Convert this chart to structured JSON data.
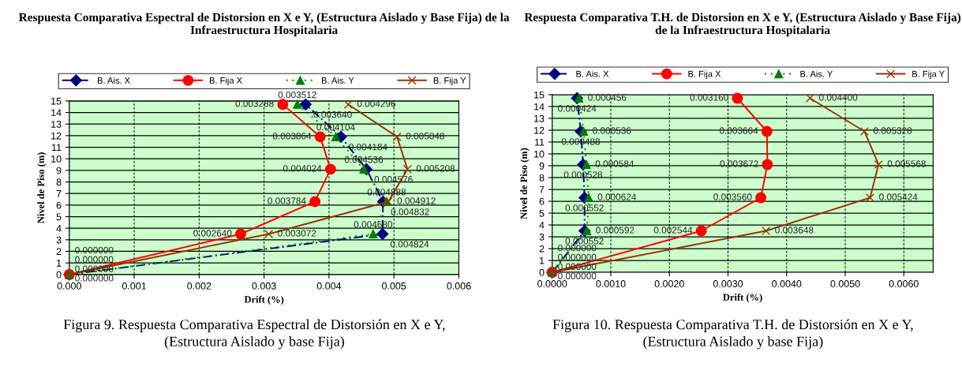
{
  "chart_data": [
    {
      "type": "line",
      "orientation": "horizontal",
      "title": "Respuesta Comparativa Espectral de Distorsion en X e Y, (Estructura Aislado y Base Fija) de la Infraestructura Hospitalaria",
      "xlabel": "Drift (%)",
      "ylabel": "Nivel de Piso (m)",
      "annotations": [
        "Figura 9. Respuesta Comparativa Espectral de Distorsión en X e Y,\n(Estructura Aislado y base Fija)"
      ],
      "series": [
        {
          "name": "B. Ais. X",
          "color": "#000080",
          "marker": "diamond",
          "line_style": "dashed",
          "x": [
            0,
            3.5,
            6.3,
            9.1,
            11.9,
            14.7
          ],
          "values": [
            0.0,
            0.004824,
            0.004832,
            0.004576,
            0.004184,
            0.00364
          ],
          "value_labels": [
            "0.000000",
            "0.004824",
            "0.004832",
            "0.004576",
            "0.004184",
            "0.003640"
          ]
        },
        {
          "name": "B. Fija X",
          "color": "#ff0000",
          "marker": "circle",
          "line_style": "solid",
          "x": [
            0,
            3.5,
            6.3,
            9.1,
            11.9,
            14.7
          ],
          "values": [
            0.0,
            0.00264,
            0.003784,
            0.004024,
            0.003864,
            0.003288
          ],
          "value_labels": [
            "0.000000",
            "0.002640",
            "0.003784",
            "0.004024",
            "0.003864",
            "0.003288"
          ]
        },
        {
          "name": "B. Ais. Y",
          "color": "#008000",
          "marker": "triangle",
          "line_style": "dotted",
          "x": [
            0,
            3.5,
            6.3,
            9.1,
            11.9,
            14.7
          ],
          "values": [
            0.0,
            0.00468,
            0.004888,
            0.004536,
            0.004104,
            0.003512
          ],
          "value_labels": [
            "0.000000",
            "0.004680",
            "0.004888",
            "0.004536",
            "0.004104",
            "0.003512"
          ]
        },
        {
          "name": "B. Fija Y",
          "color": "#993300",
          "marker": "cross",
          "line_style": "solid",
          "x": [
            0,
            3.5,
            6.3,
            9.1,
            11.9,
            14.7
          ],
          "values": [
            0.0,
            0.003072,
            0.004912,
            0.005208,
            0.005048,
            0.004296
          ],
          "value_labels": [
            "0.000000",
            "0.003072",
            "0.004912",
            "0.005208",
            "0.005048",
            "0.004296"
          ]
        }
      ],
      "xlim": [
        0,
        0.006
      ],
      "xticks": [
        {
          "value": 0,
          "label": "0.000"
        },
        0.001,
        0.002,
        0.003,
        0.004,
        0.005,
        0.006
      ],
      "ylim": [
        0,
        15
      ],
      "yticks": [
        0,
        1,
        2,
        3,
        4,
        5,
        6,
        7,
        8,
        9,
        10,
        11,
        12,
        13,
        14,
        15
      ],
      "grid": true,
      "legend": "top"
    },
    {
      "type": "line",
      "orientation": "horizontal",
      "title": "Respuesta Comparativa T.H. de Distorsion en X e Y, (Estructura Aislado y Base Fija) de la Infraestructura Hospitalaria",
      "xlabel": "Drift (%)",
      "ylabel": "Nivel de Piso (m)",
      "annotations": [
        "Figura 10. Respuesta Comparativa T.H. de Distorsión en X e Y,\n(Estructura Aislado y base Fija)"
      ],
      "series": [
        {
          "name": "B. Ais. X",
          "color": "#000080",
          "marker": "diamond",
          "line_style": "dashed",
          "x": [
            0,
            3.5,
            6.3,
            9.1,
            11.9,
            14.7
          ],
          "values": [
            0.0,
            0.000552,
            0.000552,
            0.000528,
            0.000488,
            0.000424
          ],
          "value_labels": [
            "0.000000",
            "0.000552",
            "0.000552",
            "0.000528",
            "0.000488",
            "0.000424"
          ]
        },
        {
          "name": "B. Fija X",
          "color": "#ff0000",
          "marker": "circle",
          "line_style": "solid",
          "x": [
            0,
            3.5,
            6.3,
            9.1,
            11.9,
            14.7
          ],
          "values": [
            0.0,
            0.002544,
            0.00356,
            0.003672,
            0.003664,
            0.00316
          ],
          "value_labels": [
            "0.000000",
            "0.002544",
            "0.003560",
            "0.003672",
            "0.003664",
            "0.003160"
          ]
        },
        {
          "name": "B. Ais. Y",
          "color": "#008000",
          "marker": "triangle",
          "line_style": "dotted",
          "x": [
            0,
            3.5,
            6.3,
            9.1,
            11.9,
            14.7
          ],
          "values": [
            0.0,
            0.000592,
            0.000624,
            0.000584,
            0.000536,
            0.000456
          ],
          "value_labels": [
            "0.000000",
            "0.000592",
            "0.000624",
            "0.000584",
            "0.000536",
            "0.000456"
          ]
        },
        {
          "name": "B. Fija Y",
          "color": "#993300",
          "marker": "cross",
          "line_style": "solid",
          "x": [
            0,
            3.5,
            6.3,
            9.1,
            11.9,
            14.7
          ],
          "values": [
            0.0,
            0.003648,
            0.005424,
            0.005568,
            0.005328,
            0.0044
          ],
          "value_labels": [
            "0.000000",
            "0.003648",
            "0.005424",
            "0.005568",
            "0.005328",
            "0.004400"
          ]
        }
      ],
      "xlim": [
        0,
        0.0065
      ],
      "xticks": [
        {
          "value": 0,
          "label": "0.0000"
        },
        {
          "value": 0.001,
          "label": "0.0010"
        },
        {
          "value": 0.002,
          "label": "0.0020"
        },
        {
          "value": 0.003,
          "label": "0.0030"
        },
        {
          "value": 0.004,
          "label": "0.0040"
        },
        {
          "value": 0.005,
          "label": "0.0050"
        },
        {
          "value": 0.006,
          "label": "0.0060"
        }
      ],
      "ylim": [
        0,
        15
      ],
      "yticks": [
        0,
        1,
        2,
        3,
        4,
        5,
        6,
        7,
        8,
        9,
        10,
        11,
        12,
        13,
        14,
        15
      ],
      "grid": true,
      "legend": "top"
    }
  ]
}
